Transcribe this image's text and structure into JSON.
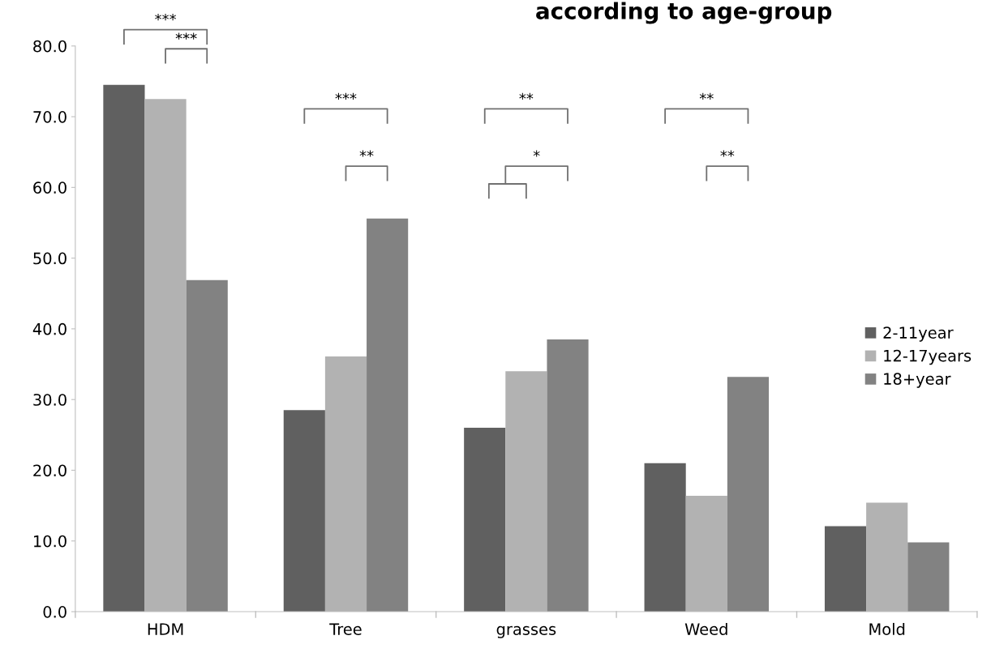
{
  "chart_data": {
    "type": "bar",
    "title": "according to age-group",
    "categories": [
      "HDM",
      "Tree",
      "grasses",
      "Weed",
      "Mold"
    ],
    "series": [
      {
        "name": "2-11year",
        "color": "#606060",
        "values": [
          74.5,
          28.5,
          26.0,
          21.0,
          12.1
        ]
      },
      {
        "name": "12-17years",
        "color": "#b2b2b2",
        "values": [
          72.5,
          36.1,
          34.0,
          16.4,
          15.4
        ]
      },
      {
        "name": "18+year",
        "color": "#828282",
        "values": [
          46.9,
          55.6,
          38.5,
          33.2,
          9.8
        ]
      }
    ],
    "ylim": [
      0,
      80
    ],
    "yticks": [
      {
        "value": 0,
        "label": "0.0"
      },
      {
        "value": 10,
        "label": "10.0"
      },
      {
        "value": 20,
        "label": "20.0"
      },
      {
        "value": 30,
        "label": "30.0"
      },
      {
        "value": 40,
        "label": "40.0"
      },
      {
        "value": 50,
        "label": "50.0"
      },
      {
        "value": 60,
        "label": "60.0"
      },
      {
        "value": 70,
        "label": "70.0"
      },
      {
        "value": 80,
        "label": "80.0"
      }
    ],
    "annotations": [
      "***",
      "***",
      "***",
      "**",
      "**",
      "*",
      "**",
      "**"
    ],
    "legend": "right",
    "grid": false
  }
}
